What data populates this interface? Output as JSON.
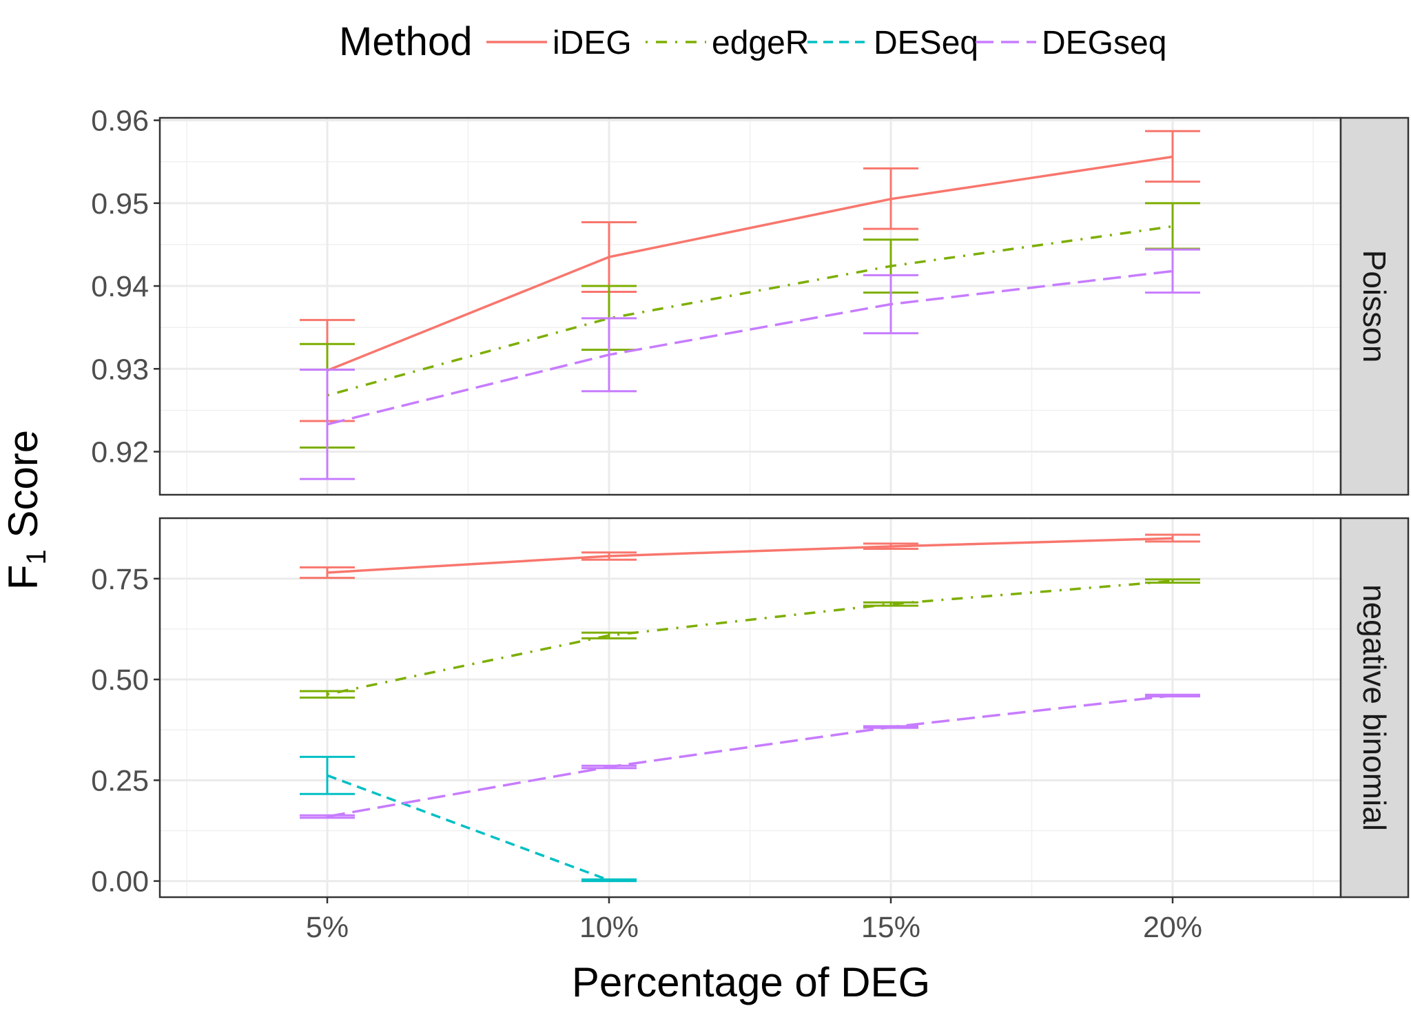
{
  "chart_data": {
    "type": "line",
    "xlabel": "Percentage of DEG",
    "ylabel": "F",
    "ylabel_subscript": "1",
    "ylabel_suffix": " Score",
    "categories": [
      "5%",
      "10%",
      "15%",
      "20%"
    ],
    "legend": {
      "title": "Method",
      "position": "top",
      "entries": [
        "iDEG",
        "edgeR",
        "DESeq",
        "DEGseq"
      ]
    },
    "colors": {
      "iDEG": "#F8766D",
      "edgeR": "#7CAE00",
      "DESeq": "#00BFC4",
      "DEGseq": "#C77CFF"
    },
    "line_styles": {
      "iDEG": "solid",
      "edgeR": "dotdash",
      "DESeq": "dashed",
      "DEGseq": "longdash"
    },
    "grid": true,
    "panels": [
      {
        "label": "Poisson",
        "ylim": [
          0.9148,
          0.9603
        ],
        "yticks": [
          0.92,
          0.93,
          0.94,
          0.95,
          0.96
        ],
        "ytick_labels": [
          "0.92",
          "0.93",
          "0.94",
          "0.95",
          "0.96"
        ],
        "series": [
          {
            "name": "iDEG",
            "values": [
              0.9298,
              0.9435,
              0.9505,
              0.9556
            ],
            "lower": [
              0.9237,
              0.9393,
              0.9469,
              0.9526
            ],
            "upper": [
              0.9359,
              0.9477,
              0.9542,
              0.9587
            ]
          },
          {
            "name": "edgeR",
            "values": [
              0.9268,
              0.9361,
              0.9424,
              0.9472
            ],
            "lower": [
              0.9205,
              0.9323,
              0.9392,
              0.9445
            ],
            "upper": [
              0.933,
              0.94,
              0.9456,
              0.95
            ]
          },
          {
            "name": "DEGseq",
            "values": [
              0.9233,
              0.9317,
              0.9378,
              0.9418
            ],
            "lower": [
              0.9167,
              0.9273,
              0.9343,
              0.9392
            ],
            "upper": [
              0.9299,
              0.9361,
              0.9413,
              0.9444
            ]
          }
        ]
      },
      {
        "label": "negative binomial",
        "ylim": [
          -0.04,
          0.9
        ],
        "yticks": [
          0.0,
          0.25,
          0.5,
          0.75
        ],
        "ytick_labels": [
          "0.00",
          "0.25",
          "0.50",
          "0.75"
        ],
        "series": [
          {
            "name": "iDEG",
            "values": [
              0.765,
              0.806,
              0.83,
              0.85
            ],
            "lower": [
              0.752,
              0.797,
              0.824,
              0.842
            ],
            "upper": [
              0.778,
              0.815,
              0.837,
              0.859
            ]
          },
          {
            "name": "edgeR",
            "values": [
              0.463,
              0.609,
              0.687,
              0.744
            ],
            "lower": [
              0.455,
              0.602,
              0.683,
              0.74
            ],
            "upper": [
              0.471,
              0.616,
              0.691,
              0.748
            ]
          },
          {
            "name": "DESeq",
            "values": [
              0.262,
              0.002,
              null,
              null
            ],
            "lower": [
              0.216,
              0.0,
              null,
              null
            ],
            "upper": [
              0.308,
              0.004,
              null,
              null
            ]
          },
          {
            "name": "DEGseq",
            "values": [
              0.16,
              0.283,
              0.382,
              0.46
            ],
            "lower": [
              0.157,
              0.28,
              0.38,
              0.458
            ],
            "upper": [
              0.163,
              0.286,
              0.384,
              0.462
            ]
          }
        ]
      }
    ]
  }
}
